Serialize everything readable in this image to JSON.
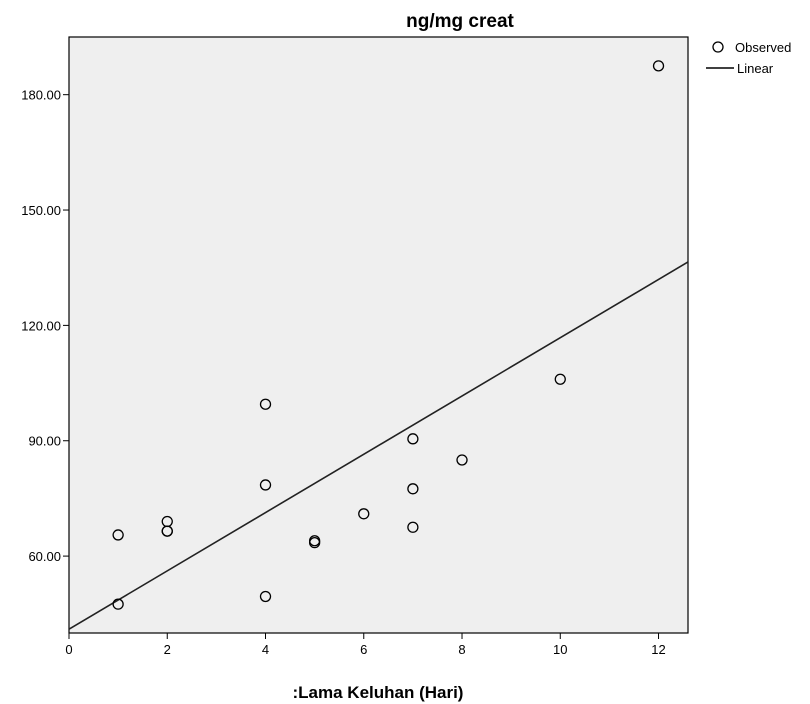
{
  "chart_data": {
    "type": "scatter",
    "title": "ng/mg creat",
    "xlabel": ":Lama Keluhan (Hari)",
    "ylabel": "",
    "xlim": [
      0,
      12.6
    ],
    "ylim": [
      40,
      195
    ],
    "x_ticks": [
      0,
      2,
      4,
      6,
      8,
      10,
      12
    ],
    "x_tick_labels": [
      "0",
      "2",
      "4",
      "6",
      "8",
      "10",
      "12"
    ],
    "y_ticks": [
      60,
      90,
      120,
      150,
      180
    ],
    "y_tick_labels": [
      "60.00",
      "90.00",
      "120.00",
      "150.00",
      "180.00"
    ],
    "grid": false,
    "legend_position": "top-right-outside",
    "plot_background": "#efefef",
    "series": [
      {
        "name": "Observed",
        "kind": "scatter",
        "x": [
          1,
          1,
          2,
          2,
          2,
          4,
          4,
          4,
          5,
          5,
          6,
          7,
          7,
          7,
          8,
          10,
          12
        ],
        "y": [
          65.5,
          47.5,
          69,
          66.5,
          66.5,
          99.5,
          78.5,
          49.5,
          64,
          63.5,
          71,
          90.5,
          77.5,
          67.5,
          85,
          106,
          187.5
        ]
      },
      {
        "name": "Linear",
        "kind": "line",
        "x": [
          0,
          12.6
        ],
        "y": [
          41,
          136.5
        ]
      }
    ]
  }
}
